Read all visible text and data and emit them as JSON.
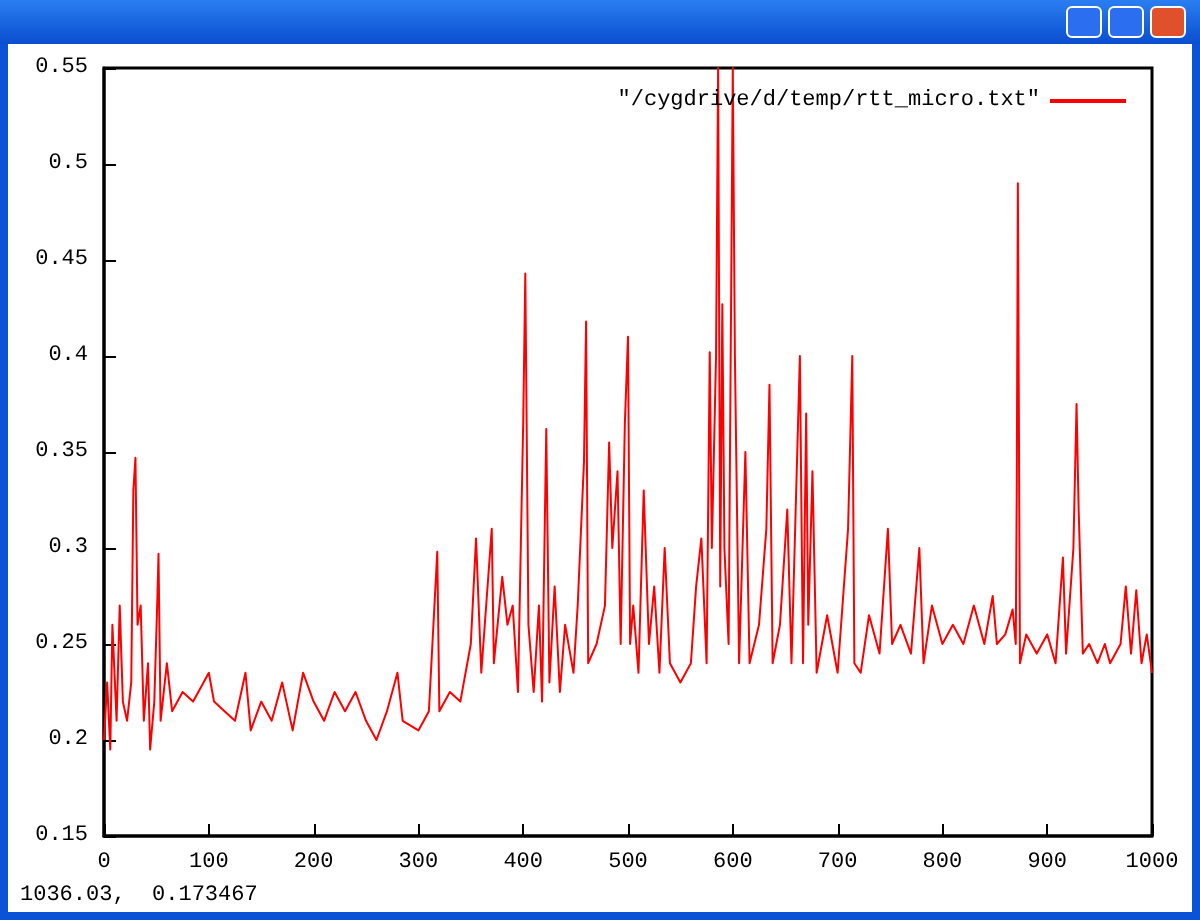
{
  "chart_data": {
    "type": "line",
    "legend": "top right",
    "xlim": [
      0,
      1000
    ],
    "ylim": [
      0.15,
      0.55
    ],
    "xticks": [
      0,
      100,
      200,
      300,
      400,
      500,
      600,
      700,
      800,
      900,
      1000
    ],
    "yticks": [
      0.15,
      0.2,
      0.25,
      0.3,
      0.35,
      0.4,
      0.45,
      0.5,
      0.55
    ],
    "annotations": [
      "1036.03,  0.173467"
    ],
    "series": [
      {
        "name": "\"/cygdrive/d/temp/rtt_micro.txt\"",
        "color": "#ff0000",
        "x": [
          0,
          3,
          6,
          8,
          12,
          15,
          18,
          22,
          26,
          28,
          30,
          32,
          35,
          38,
          42,
          44,
          48,
          51,
          52,
          54,
          60,
          65,
          75,
          85,
          95,
          100,
          105,
          115,
          125,
          135,
          140,
          150,
          160,
          170,
          180,
          190,
          200,
          210,
          220,
          230,
          240,
          250,
          260,
          270,
          280,
          285,
          300,
          310,
          318,
          320,
          330,
          340,
          350,
          355,
          360,
          370,
          372,
          380,
          385,
          390,
          395,
          400,
          402,
          405,
          410,
          415,
          418,
          422,
          425,
          430,
          435,
          440,
          448,
          452,
          458,
          460,
          462,
          470,
          478,
          482,
          485,
          490,
          493,
          497,
          500,
          502,
          505,
          510,
          515,
          520,
          525,
          530,
          535,
          540,
          550,
          560,
          565,
          570,
          575,
          578,
          580,
          584,
          586,
          588,
          590,
          592,
          596,
          600,
          602,
          606,
          612,
          616,
          625,
          632,
          635,
          638,
          645,
          652,
          656,
          664,
          667,
          670,
          672,
          676,
          680,
          690,
          700,
          710,
          714,
          716,
          722,
          730,
          740,
          748,
          752,
          760,
          770,
          778,
          782,
          790,
          800,
          810,
          820,
          830,
          840,
          848,
          852,
          860,
          867,
          870,
          871,
          872,
          874,
          880,
          890,
          900,
          908,
          915,
          918,
          925,
          928,
          930,
          934,
          940,
          948,
          955,
          960,
          970,
          975,
          980,
          985,
          990,
          995,
          1000
        ],
        "values": [
          0.2,
          0.23,
          0.195,
          0.26,
          0.21,
          0.27,
          0.22,
          0.21,
          0.23,
          0.33,
          0.347,
          0.26,
          0.27,
          0.21,
          0.24,
          0.195,
          0.22,
          0.275,
          0.297,
          0.21,
          0.24,
          0.215,
          0.225,
          0.22,
          0.23,
          0.235,
          0.22,
          0.215,
          0.21,
          0.235,
          0.205,
          0.22,
          0.21,
          0.23,
          0.205,
          0.235,
          0.22,
          0.21,
          0.225,
          0.215,
          0.225,
          0.21,
          0.2,
          0.215,
          0.235,
          0.21,
          0.205,
          0.215,
          0.298,
          0.215,
          0.225,
          0.22,
          0.25,
          0.305,
          0.235,
          0.31,
          0.24,
          0.285,
          0.26,
          0.27,
          0.225,
          0.365,
          0.443,
          0.26,
          0.225,
          0.27,
          0.22,
          0.362,
          0.23,
          0.28,
          0.225,
          0.26,
          0.235,
          0.27,
          0.345,
          0.418,
          0.24,
          0.25,
          0.27,
          0.355,
          0.3,
          0.34,
          0.25,
          0.365,
          0.41,
          0.25,
          0.27,
          0.235,
          0.33,
          0.25,
          0.28,
          0.235,
          0.3,
          0.24,
          0.23,
          0.24,
          0.28,
          0.305,
          0.24,
          0.402,
          0.3,
          0.4,
          0.55,
          0.28,
          0.427,
          0.3,
          0.25,
          0.55,
          0.4,
          0.24,
          0.35,
          0.24,
          0.26,
          0.31,
          0.385,
          0.24,
          0.26,
          0.32,
          0.24,
          0.4,
          0.24,
          0.37,
          0.26,
          0.34,
          0.235,
          0.265,
          0.235,
          0.31,
          0.4,
          0.24,
          0.235,
          0.265,
          0.245,
          0.31,
          0.25,
          0.26,
          0.245,
          0.3,
          0.24,
          0.27,
          0.25,
          0.26,
          0.25,
          0.27,
          0.25,
          0.275,
          0.25,
          0.255,
          0.268,
          0.25,
          0.335,
          0.49,
          0.24,
          0.255,
          0.245,
          0.255,
          0.24,
          0.295,
          0.245,
          0.3,
          0.375,
          0.32,
          0.245,
          0.25,
          0.24,
          0.25,
          0.24,
          0.25,
          0.28,
          0.245,
          0.278,
          0.24,
          0.255,
          0.235
        ]
      }
    ]
  }
}
